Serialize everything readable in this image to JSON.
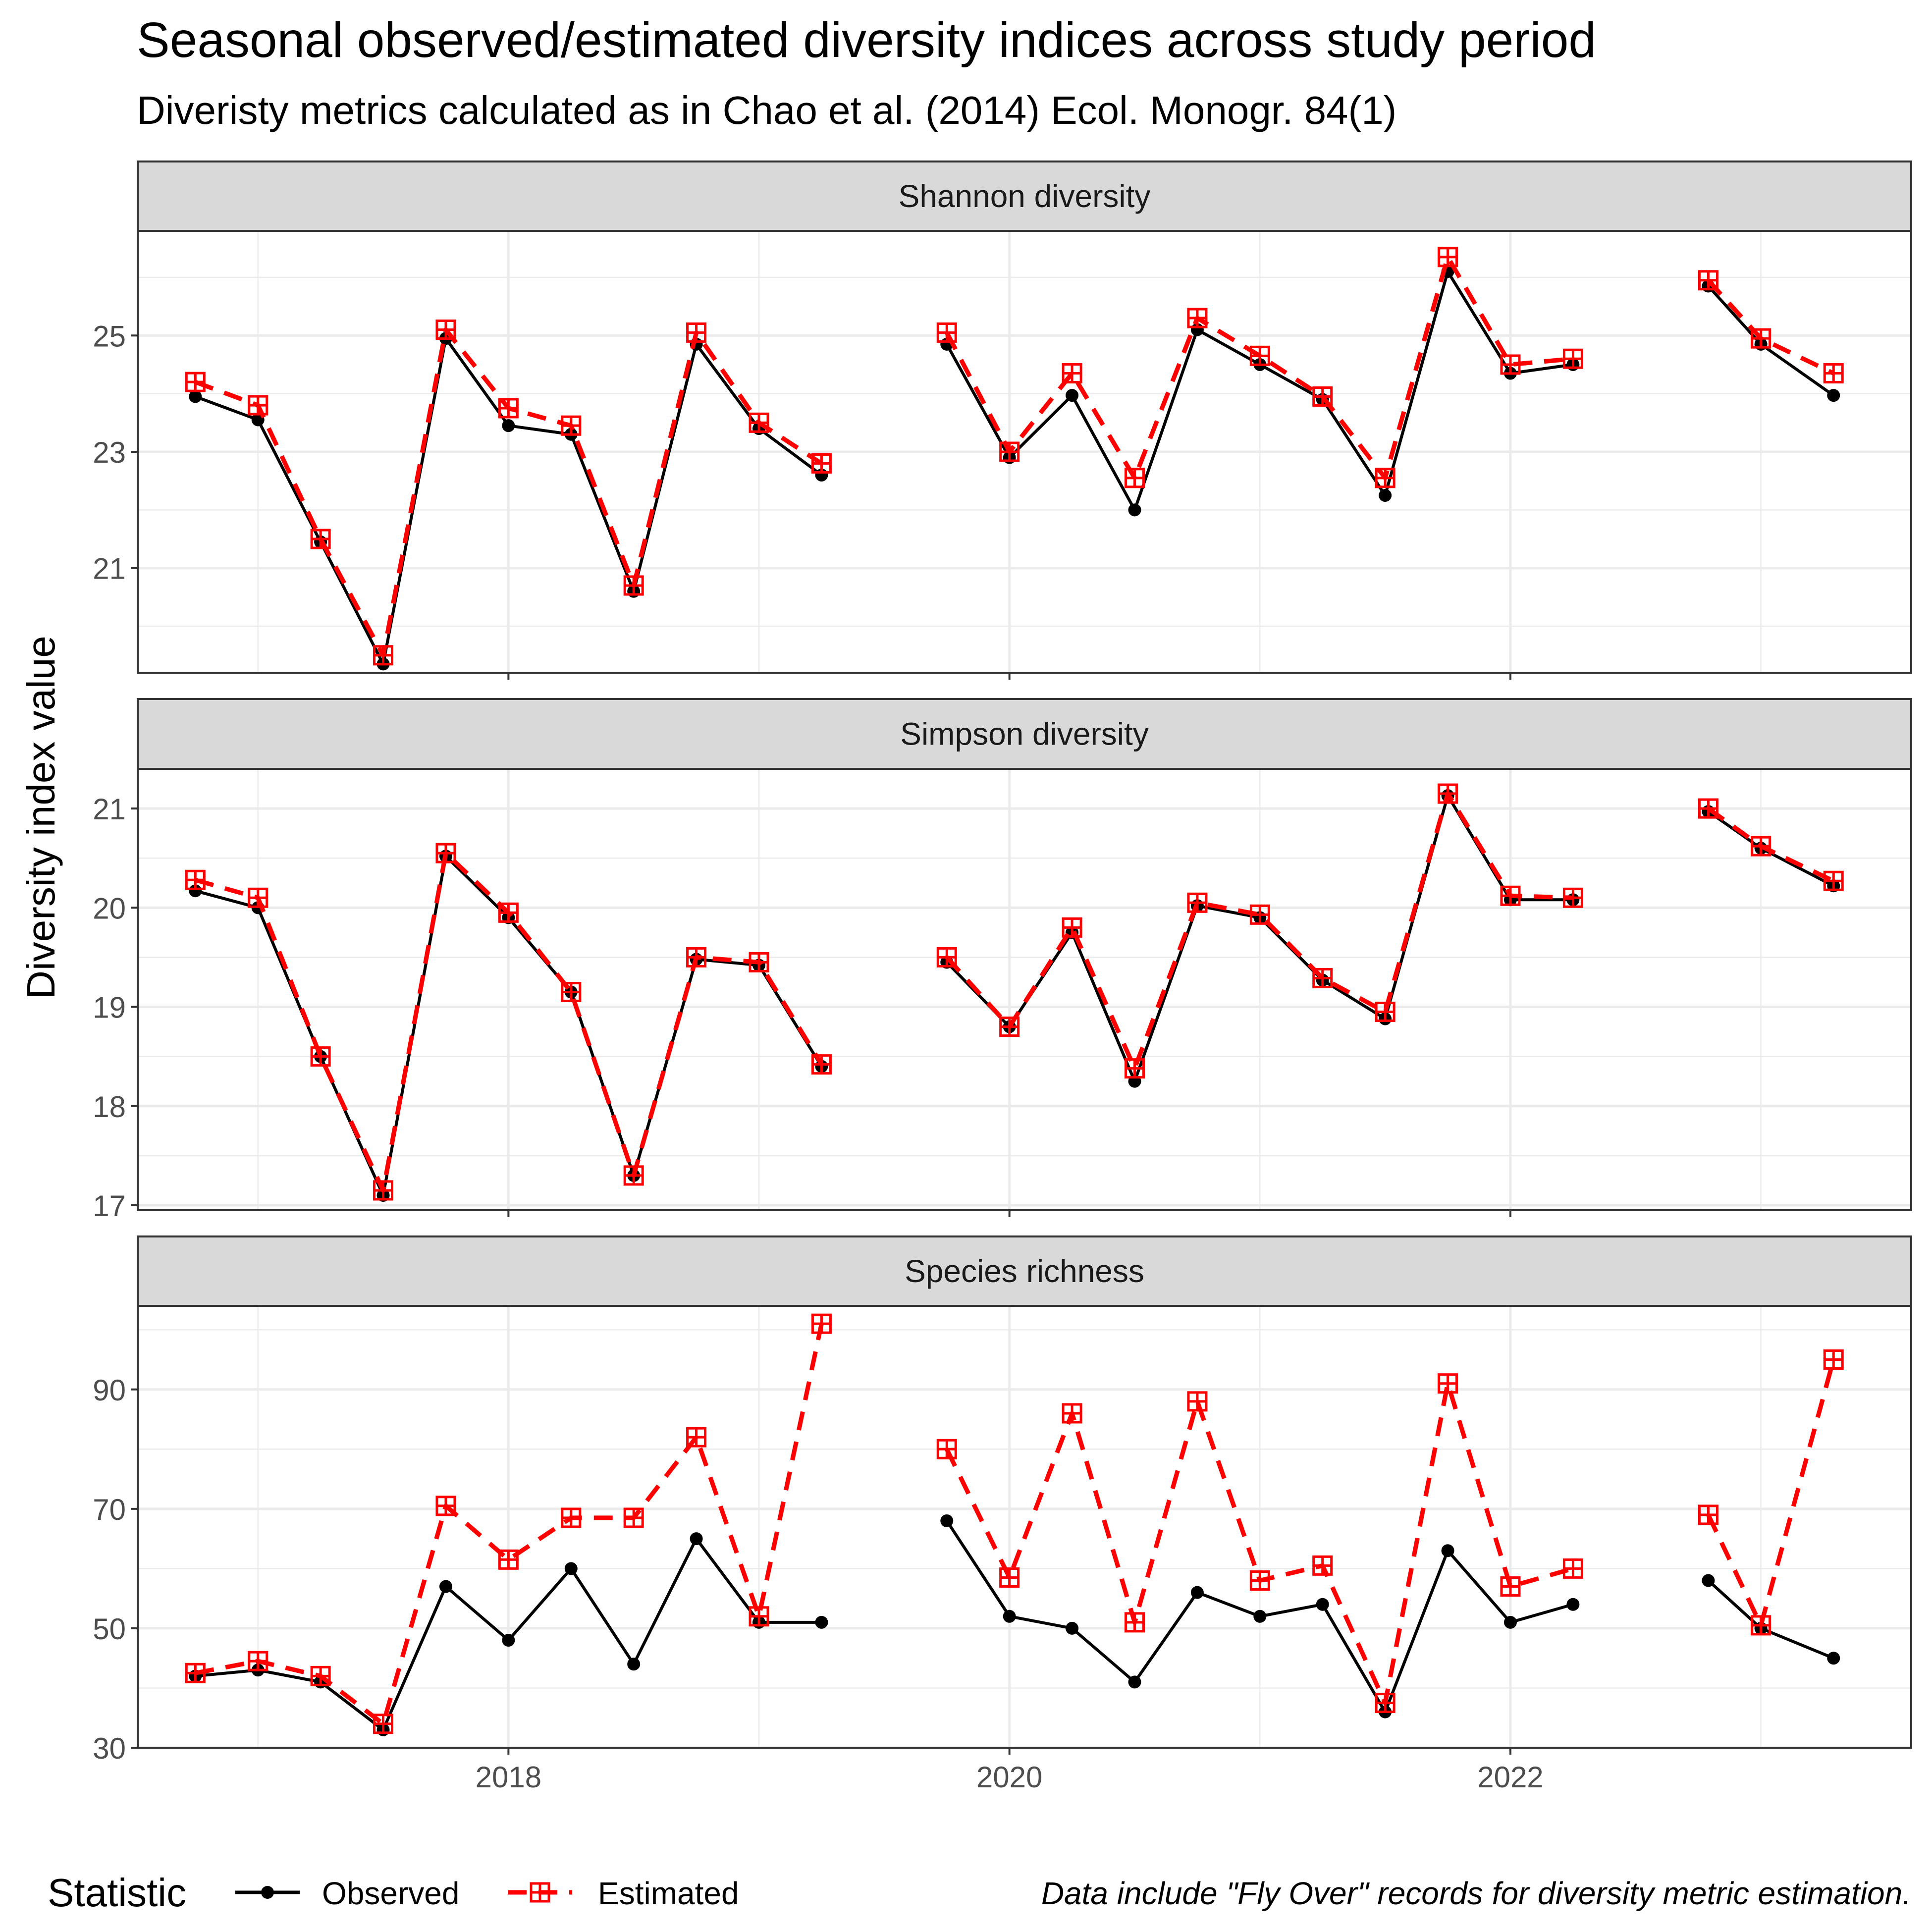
{
  "title": "Seasonal observed/estimated diversity indices across study period",
  "subtitle": "Diveristy metrics calculated as in Chao et al. (2014) Ecol. Monogr. 84(1)",
  "ylabel": "Diversity index value",
  "caption": "Data include \"Fly Over\" records for diversity metric estimation.",
  "legend": {
    "title": "Statistic",
    "position": "bottom",
    "items": [
      {
        "label": "Observed",
        "color": "#000000",
        "linetype": "solid",
        "marker": "filled-circle"
      },
      {
        "label": "Estimated",
        "color": "#ff0000",
        "linetype": "dashed",
        "marker": "boxed-plus"
      }
    ]
  },
  "colors": {
    "observed": "#000000",
    "estimated": "#ff0000",
    "strip_fill": "#d9d9d9",
    "grid": "#ebebeb",
    "panel_border": "#333333"
  },
  "chart_data": [
    {
      "type": "line",
      "title": "Shannon diversity",
      "x_ticks": [
        2018,
        2020,
        2022
      ],
      "xlim": [
        2016.52,
        2023.6
      ],
      "y_ticks": [
        21,
        23,
        25
      ],
      "ylim": [
        19.2,
        26.8
      ],
      "grid": true,
      "x": [
        2016.75,
        2017.0,
        2017.25,
        2017.5,
        2017.75,
        2018.0,
        2018.25,
        2018.5,
        2018.75,
        2019.0,
        2019.25,
        null,
        2019.75,
        2020.0,
        2020.25,
        2020.5,
        2020.75,
        2021.0,
        2021.25,
        2021.5,
        2021.75,
        2022.0,
        2022.25,
        null,
        2022.79,
        2023.0,
        2023.29
      ],
      "series": [
        {
          "name": "Observed",
          "values": [
            23.95,
            23.55,
            21.45,
            19.35,
            24.95,
            23.45,
            23.3,
            20.6,
            24.85,
            23.4,
            22.6,
            null,
            24.85,
            22.9,
            23.97,
            22.0,
            25.1,
            24.5,
            23.9,
            22.25,
            26.1,
            24.35,
            24.5,
            null,
            25.85,
            24.85,
            23.97
          ]
        },
        {
          "name": "Estimated",
          "values": [
            24.2,
            23.8,
            21.5,
            19.5,
            25.1,
            23.75,
            23.45,
            20.7,
            25.05,
            23.5,
            22.8,
            null,
            25.05,
            23.0,
            24.35,
            22.55,
            25.3,
            24.65,
            23.95,
            22.55,
            26.35,
            24.5,
            24.6,
            null,
            25.95,
            24.95,
            24.35
          ]
        }
      ]
    },
    {
      "type": "line",
      "title": "Simpson diversity",
      "x_ticks": [
        2018,
        2020,
        2022
      ],
      "xlim": [
        2016.52,
        2023.6
      ],
      "y_ticks": [
        17,
        18,
        19,
        20,
        21
      ],
      "ylim": [
        16.95,
        21.4
      ],
      "grid": true,
      "x": [
        2016.75,
        2017.0,
        2017.25,
        2017.5,
        2017.75,
        2018.0,
        2018.25,
        2018.5,
        2018.75,
        2019.0,
        2019.25,
        null,
        2019.75,
        2020.0,
        2020.25,
        2020.5,
        2020.75,
        2021.0,
        2021.25,
        2021.5,
        2021.75,
        2022.0,
        2022.25,
        null,
        2022.79,
        2023.0,
        2023.29
      ],
      "series": [
        {
          "name": "Observed",
          "values": [
            20.17,
            20.0,
            18.5,
            17.1,
            20.52,
            19.9,
            19.15,
            17.3,
            19.48,
            19.42,
            18.4,
            null,
            19.45,
            18.8,
            19.75,
            18.25,
            20.02,
            19.9,
            19.27,
            18.88,
            21.13,
            20.08,
            20.08,
            null,
            20.97,
            20.6,
            20.22
          ]
        },
        {
          "name": "Estimated",
          "values": [
            20.28,
            20.1,
            18.5,
            17.15,
            20.55,
            19.95,
            19.15,
            17.3,
            19.5,
            19.45,
            18.42,
            null,
            19.5,
            18.8,
            19.8,
            18.38,
            20.05,
            19.93,
            19.29,
            18.95,
            21.15,
            20.12,
            20.1,
            null,
            21.0,
            20.62,
            20.27
          ]
        }
      ]
    },
    {
      "type": "line",
      "title": "Species richness",
      "x_ticks": [
        2018,
        2020,
        2022
      ],
      "x_tick_labels": [
        "2018",
        "2020",
        "2022"
      ],
      "xlim": [
        2016.52,
        2023.6
      ],
      "y_ticks": [
        30,
        50,
        70,
        90
      ],
      "ylim": [
        30,
        104
      ],
      "grid": true,
      "x": [
        2016.75,
        2017.0,
        2017.25,
        2017.5,
        2017.75,
        2018.0,
        2018.25,
        2018.5,
        2018.75,
        2019.0,
        2019.25,
        null,
        2019.75,
        2020.0,
        2020.25,
        2020.5,
        2020.75,
        2021.0,
        2021.25,
        2021.5,
        2021.75,
        2022.0,
        2022.25,
        null,
        2022.79,
        2023.0,
        2023.29
      ],
      "series": [
        {
          "name": "Observed",
          "values": [
            42,
            43,
            41,
            33,
            57,
            48,
            60,
            44,
            65,
            51,
            51,
            null,
            68,
            52,
            50,
            41,
            56,
            52,
            54,
            36,
            63,
            51,
            54,
            null,
            58,
            50,
            45
          ]
        },
        {
          "name": "Estimated",
          "values": [
            42.5,
            44.5,
            42,
            34,
            70.5,
            61.5,
            68.5,
            68.5,
            82,
            52,
            101,
            null,
            80,
            58.5,
            86,
            51,
            88,
            58,
            60.5,
            37.5,
            91,
            57,
            60,
            null,
            69,
            50.5,
            95
          ]
        }
      ]
    }
  ]
}
